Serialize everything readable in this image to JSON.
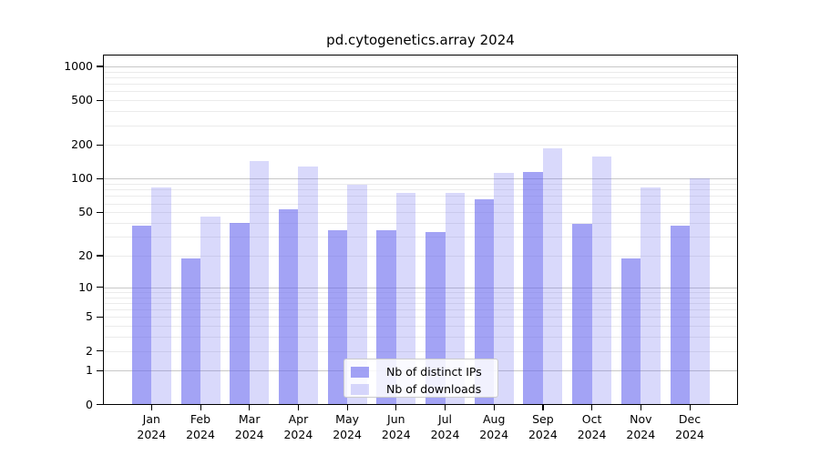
{
  "chart_data": {
    "type": "bar",
    "title": "pd.cytogenetics.array 2024",
    "categories": [
      "Jan",
      "Feb",
      "Mar",
      "Apr",
      "May",
      "Jun",
      "Jul",
      "Aug",
      "Sep",
      "Oct",
      "Nov",
      "Dec"
    ],
    "category_year": "2024",
    "series": [
      {
        "name": "Nb of distinct IPs",
        "color": "#6666ee",
        "alpha": 0.6,
        "values": [
          38,
          19,
          40,
          53,
          34,
          34,
          33,
          65,
          115,
          39,
          19,
          38
        ]
      },
      {
        "name": "Nb of downloads",
        "color": "#6666ee",
        "alpha": 0.25,
        "values": [
          83,
          46,
          143,
          128,
          88,
          74,
          75,
          113,
          188,
          158,
          83,
          100
        ]
      }
    ],
    "yscale": "log1p",
    "ylim": [
      0,
      1270
    ],
    "y_ticks": [
      1000,
      500,
      200,
      100,
      50,
      20,
      10,
      5,
      2,
      1,
      0
    ],
    "y_gridlines_major": [
      1,
      10,
      100,
      1000
    ],
    "grid": "on",
    "legend_position": "lower-center",
    "colors": {
      "background": "#ffffff",
      "grid_major": "#c8c8c8",
      "grid_minor": "#ebebeb",
      "axis": "#000000"
    }
  }
}
